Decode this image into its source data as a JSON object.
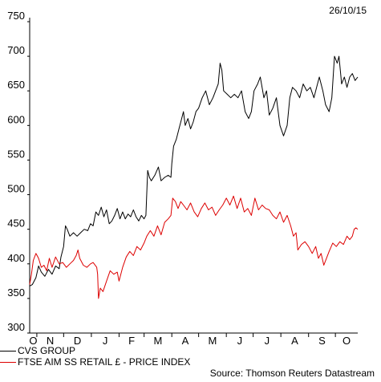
{
  "date_label": "26/10/15",
  "source": "Source: Thomson Reuters Datastream",
  "colors": {
    "cvs": "#000000",
    "ftse": "#dd0000"
  },
  "chart_data": {
    "type": "line",
    "title": "",
    "xlabel": "",
    "ylabel": "",
    "ylim": [
      300,
      750
    ],
    "yticks": [
      300,
      350,
      400,
      450,
      500,
      550,
      600,
      650,
      700,
      750
    ],
    "x_tick_labels": [
      "O",
      "N",
      "D",
      "J",
      "F",
      "M",
      "A",
      "M",
      "J",
      "J",
      "A",
      "S",
      "O"
    ],
    "x_range": [
      "2014-10-24",
      "2015-10-26"
    ],
    "legend_position": "bottom-left",
    "grid": false,
    "series": [
      {
        "name": "CVS GROUP",
        "color": "#000000",
        "points": [
          [
            "2014-10-24",
            368
          ],
          [
            "2014-10-27",
            370
          ],
          [
            "2014-10-31",
            380
          ],
          [
            "2014-11-03",
            397
          ],
          [
            "2014-11-06",
            388
          ],
          [
            "2014-11-10",
            382
          ],
          [
            "2014-11-14",
            392
          ],
          [
            "2014-11-18",
            385
          ],
          [
            "2014-11-22",
            397
          ],
          [
            "2014-11-26",
            393
          ],
          [
            "2014-11-28",
            410
          ],
          [
            "2014-12-01",
            425
          ],
          [
            "2014-12-03",
            455
          ],
          [
            "2014-12-05",
            450
          ],
          [
            "2014-12-08",
            440
          ],
          [
            "2014-12-12",
            445
          ],
          [
            "2014-12-16",
            440
          ],
          [
            "2014-12-20",
            445
          ],
          [
            "2014-12-24",
            450
          ],
          [
            "2014-12-28",
            448
          ],
          [
            "2014-12-31",
            458
          ],
          [
            "2015-01-03",
            455
          ],
          [
            "2015-01-06",
            475
          ],
          [
            "2015-01-09",
            470
          ],
          [
            "2015-01-12",
            482
          ],
          [
            "2015-01-15",
            468
          ],
          [
            "2015-01-18",
            478
          ],
          [
            "2015-01-21",
            458
          ],
          [
            "2015-01-24",
            462
          ],
          [
            "2015-01-27",
            470
          ],
          [
            "2015-01-30",
            480
          ],
          [
            "2015-02-02",
            465
          ],
          [
            "2015-02-05",
            475
          ],
          [
            "2015-02-08",
            465
          ],
          [
            "2015-02-11",
            472
          ],
          [
            "2015-02-14",
            468
          ],
          [
            "2015-02-17",
            478
          ],
          [
            "2015-02-20",
            468
          ],
          [
            "2015-02-23",
            462
          ],
          [
            "2015-02-26",
            470
          ],
          [
            "2015-03-01",
            465
          ],
          [
            "2015-03-03",
            470
          ],
          [
            "2015-03-05",
            535
          ],
          [
            "2015-03-07",
            525
          ],
          [
            "2015-03-09",
            520
          ],
          [
            "2015-03-13",
            528
          ],
          [
            "2015-03-17",
            540
          ],
          [
            "2015-03-20",
            520
          ],
          [
            "2015-03-24",
            525
          ],
          [
            "2015-03-28",
            528
          ],
          [
            "2015-03-31",
            525
          ],
          [
            "2015-04-01",
            545
          ],
          [
            "2015-04-03",
            570
          ],
          [
            "2015-04-06",
            580
          ],
          [
            "2015-04-09",
            595
          ],
          [
            "2015-04-12",
            610
          ],
          [
            "2015-04-14",
            620
          ],
          [
            "2015-04-16",
            600
          ],
          [
            "2015-04-19",
            610
          ],
          [
            "2015-04-22",
            595
          ],
          [
            "2015-04-25",
            605
          ],
          [
            "2015-04-28",
            620
          ],
          [
            "2015-05-01",
            625
          ],
          [
            "2015-05-05",
            640
          ],
          [
            "2015-05-09",
            650
          ],
          [
            "2015-05-13",
            630
          ],
          [
            "2015-05-17",
            640
          ],
          [
            "2015-05-20",
            650
          ],
          [
            "2015-05-23",
            660
          ],
          [
            "2015-05-25",
            690
          ],
          [
            "2015-05-27",
            680
          ],
          [
            "2015-05-29",
            650
          ],
          [
            "2015-06-02",
            645
          ],
          [
            "2015-06-06",
            640
          ],
          [
            "2015-06-10",
            645
          ],
          [
            "2015-06-14",
            640
          ],
          [
            "2015-06-18",
            650
          ],
          [
            "2015-06-22",
            620
          ],
          [
            "2015-06-26",
            610
          ],
          [
            "2015-06-29",
            620
          ],
          [
            "2015-07-02",
            650
          ],
          [
            "2015-07-06",
            660
          ],
          [
            "2015-07-09",
            670
          ],
          [
            "2015-07-13",
            640
          ],
          [
            "2015-07-16",
            650
          ],
          [
            "2015-07-19",
            615
          ],
          [
            "2015-07-23",
            625
          ],
          [
            "2015-07-27",
            640
          ],
          [
            "2015-07-31",
            600
          ],
          [
            "2015-08-04",
            585
          ],
          [
            "2015-08-08",
            600
          ],
          [
            "2015-08-11",
            640
          ],
          [
            "2015-08-14",
            655
          ],
          [
            "2015-08-18",
            650
          ],
          [
            "2015-08-22",
            640
          ],
          [
            "2015-08-26",
            660
          ],
          [
            "2015-08-30",
            650
          ],
          [
            "2015-09-03",
            655
          ],
          [
            "2015-09-07",
            640
          ],
          [
            "2015-09-10",
            655
          ],
          [
            "2015-09-13",
            670
          ],
          [
            "2015-09-17",
            650
          ],
          [
            "2015-09-20",
            630
          ],
          [
            "2015-09-24",
            620
          ],
          [
            "2015-09-27",
            640
          ],
          [
            "2015-09-30",
            700
          ],
          [
            "2015-10-03",
            690
          ],
          [
            "2015-10-05",
            700
          ],
          [
            "2015-10-08",
            660
          ],
          [
            "2015-10-11",
            670
          ],
          [
            "2015-10-14",
            655
          ],
          [
            "2015-10-17",
            670
          ],
          [
            "2015-10-20",
            675
          ],
          [
            "2015-10-23",
            665
          ],
          [
            "2015-10-26",
            670
          ]
        ]
      },
      {
        "name": "FTSE AIM SS RETAIL £ - PRICE INDEX",
        "color": "#dd0000",
        "points": [
          [
            "2014-10-24",
            370
          ],
          [
            "2014-10-26",
            385
          ],
          [
            "2014-10-28",
            405
          ],
          [
            "2014-10-31",
            415
          ],
          [
            "2014-11-03",
            408
          ],
          [
            "2014-11-06",
            395
          ],
          [
            "2014-11-09",
            398
          ],
          [
            "2014-11-12",
            390
          ],
          [
            "2014-11-15",
            408
          ],
          [
            "2014-11-18",
            395
          ],
          [
            "2014-11-22",
            410
          ],
          [
            "2014-11-26",
            400
          ],
          [
            "2014-11-30",
            402
          ],
          [
            "2014-12-04",
            395
          ],
          [
            "2014-12-08",
            400
          ],
          [
            "2014-12-12",
            405
          ],
          [
            "2014-12-15",
            412
          ],
          [
            "2014-12-17",
            420
          ],
          [
            "2014-12-19",
            408
          ],
          [
            "2014-12-23",
            398
          ],
          [
            "2014-12-27",
            395
          ],
          [
            "2014-12-31",
            400
          ],
          [
            "2015-01-03",
            402
          ],
          [
            "2015-01-07",
            395
          ],
          [
            "2015-01-08",
            385
          ],
          [
            "2015-01-09",
            350
          ],
          [
            "2015-01-11",
            365
          ],
          [
            "2015-01-14",
            360
          ],
          [
            "2015-01-18",
            375
          ],
          [
            "2015-01-22",
            390
          ],
          [
            "2015-01-26",
            385
          ],
          [
            "2015-01-30",
            388
          ],
          [
            "2015-02-01",
            375
          ],
          [
            "2015-02-05",
            395
          ],
          [
            "2015-02-09",
            410
          ],
          [
            "2015-02-13",
            418
          ],
          [
            "2015-02-17",
            412
          ],
          [
            "2015-02-21",
            425
          ],
          [
            "2015-02-25",
            420
          ],
          [
            "2015-03-01",
            430
          ],
          [
            "2015-03-04",
            440
          ],
          [
            "2015-03-08",
            448
          ],
          [
            "2015-03-12",
            440
          ],
          [
            "2015-03-16",
            455
          ],
          [
            "2015-03-20",
            442
          ],
          [
            "2015-03-24",
            460
          ],
          [
            "2015-03-28",
            465
          ],
          [
            "2015-03-31",
            470
          ],
          [
            "2015-04-02",
            495
          ],
          [
            "2015-04-05",
            490
          ],
          [
            "2015-04-08",
            480
          ],
          [
            "2015-04-11",
            490
          ],
          [
            "2015-04-14",
            485
          ],
          [
            "2015-04-18",
            478
          ],
          [
            "2015-04-22",
            488
          ],
          [
            "2015-04-26",
            475
          ],
          [
            "2015-04-30",
            468
          ],
          [
            "2015-05-04",
            480
          ],
          [
            "2015-05-08",
            488
          ],
          [
            "2015-05-12",
            478
          ],
          [
            "2015-05-16",
            482
          ],
          [
            "2015-05-20",
            470
          ],
          [
            "2015-05-24",
            478
          ],
          [
            "2015-05-28",
            485
          ],
          [
            "2015-06-01",
            495
          ],
          [
            "2015-06-05",
            485
          ],
          [
            "2015-06-09",
            498
          ],
          [
            "2015-06-13",
            480
          ],
          [
            "2015-06-17",
            495
          ],
          [
            "2015-06-21",
            475
          ],
          [
            "2015-06-25",
            480
          ],
          [
            "2015-06-29",
            470
          ],
          [
            "2015-07-03",
            495
          ],
          [
            "2015-07-07",
            478
          ],
          [
            "2015-07-11",
            485
          ],
          [
            "2015-07-15",
            480
          ],
          [
            "2015-07-19",
            478
          ],
          [
            "2015-07-23",
            470
          ],
          [
            "2015-07-27",
            465
          ],
          [
            "2015-07-31",
            475
          ],
          [
            "2015-08-04",
            460
          ],
          [
            "2015-08-08",
            470
          ],
          [
            "2015-08-12",
            455
          ],
          [
            "2015-08-15",
            440
          ],
          [
            "2015-08-18",
            445
          ],
          [
            "2015-08-20",
            420
          ],
          [
            "2015-08-24",
            428
          ],
          [
            "2015-08-28",
            432
          ],
          [
            "2015-09-01",
            425
          ],
          [
            "2015-09-05",
            415
          ],
          [
            "2015-09-09",
            425
          ],
          [
            "2015-09-12",
            408
          ],
          [
            "2015-09-15",
            415
          ],
          [
            "2015-09-18",
            398
          ],
          [
            "2015-09-21",
            408
          ],
          [
            "2015-09-24",
            418
          ],
          [
            "2015-09-28",
            430
          ],
          [
            "2015-10-02",
            425
          ],
          [
            "2015-10-06",
            432
          ],
          [
            "2015-10-10",
            428
          ],
          [
            "2015-10-14",
            440
          ],
          [
            "2015-10-17",
            435
          ],
          [
            "2015-10-20",
            440
          ],
          [
            "2015-10-22",
            450
          ],
          [
            "2015-10-24",
            452
          ],
          [
            "2015-10-26",
            450
          ]
        ]
      }
    ]
  }
}
